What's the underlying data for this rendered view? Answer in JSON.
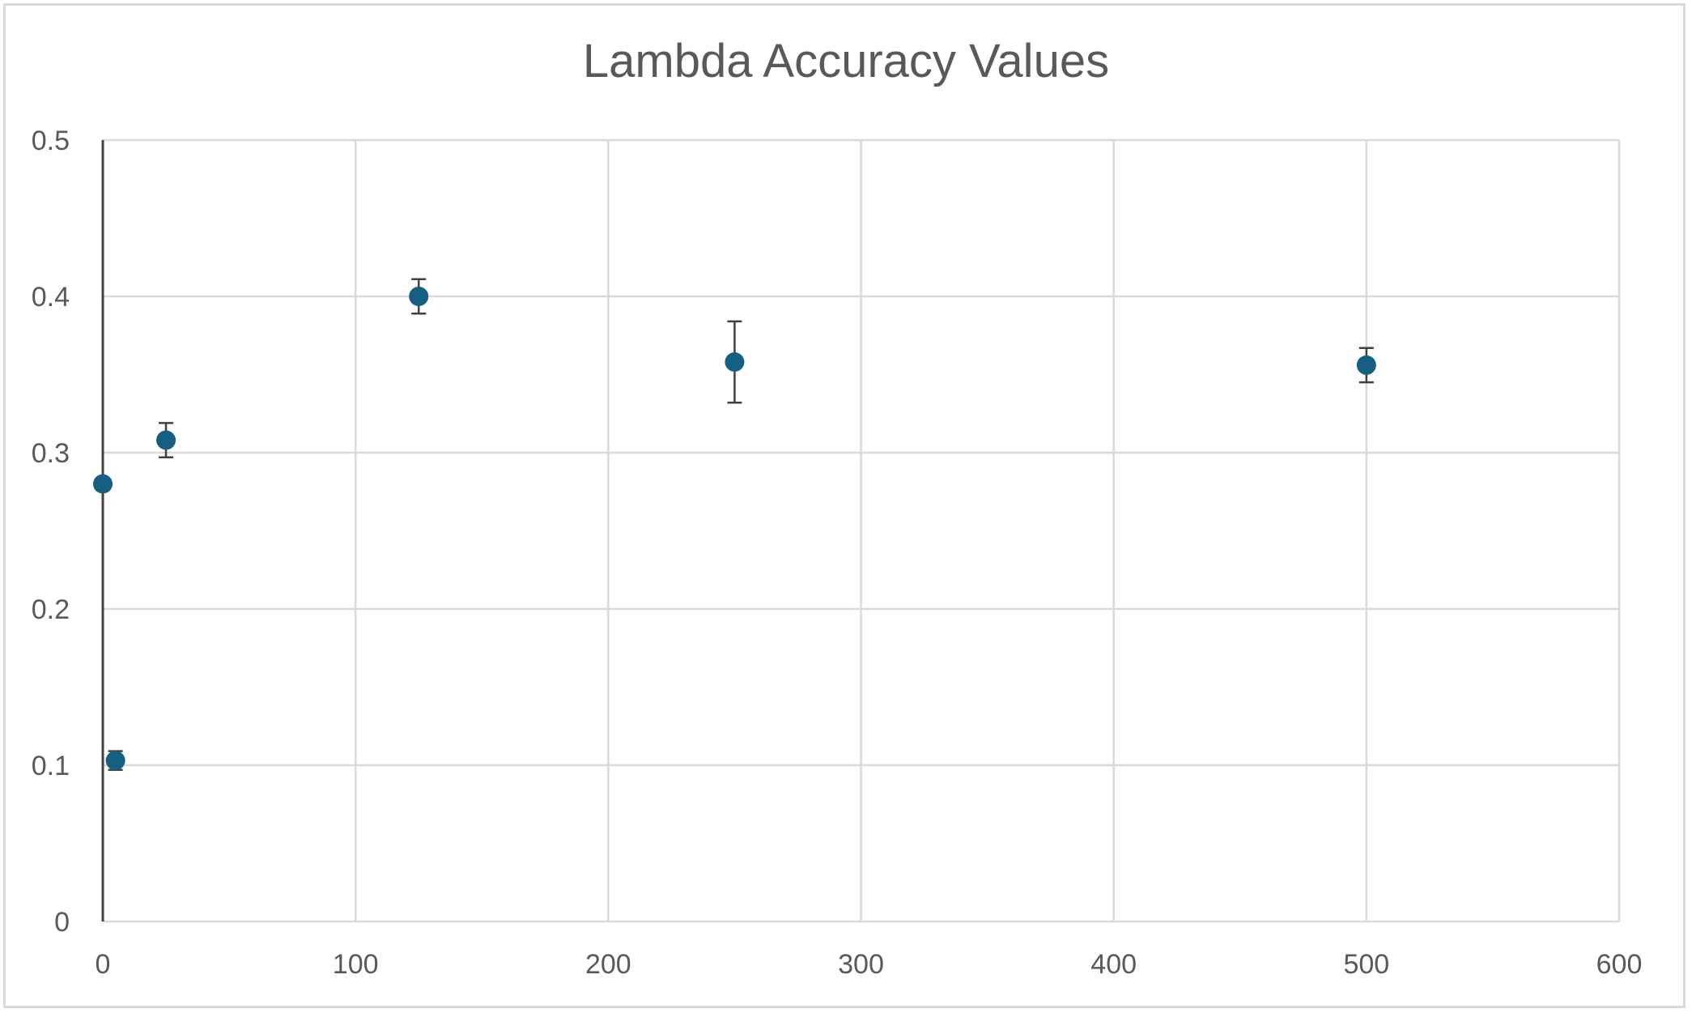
{
  "chart_data": {
    "type": "scatter",
    "title": "Lambda Accuracy Values",
    "xlabel": "",
    "ylabel": "",
    "xlim": [
      0,
      600
    ],
    "ylim": [
      0,
      0.5
    ],
    "x_ticks": [
      0,
      100,
      200,
      300,
      400,
      500,
      600
    ],
    "y_ticks": [
      0,
      0.1,
      0.2,
      0.3,
      0.4,
      0.5
    ],
    "x_tick_labels": [
      "0",
      "100",
      "200",
      "300",
      "400",
      "500",
      "600"
    ],
    "y_tick_labels": [
      "0",
      "0.1",
      "0.2",
      "0.3",
      "0.4",
      "0.5"
    ],
    "grid": true,
    "legend": "none",
    "series": [
      {
        "x": [
          0,
          5,
          25,
          125,
          250,
          500
        ],
        "y": [
          0.28,
          0.103,
          0.308,
          0.4,
          0.358,
          0.356
        ],
        "error": [
          0.0,
          0.006,
          0.011,
          0.011,
          0.026,
          0.011
        ]
      }
    ],
    "colors": {
      "marker": "#145f82",
      "grid": "#d9d9d9",
      "axis": "#404040",
      "text": "#595959",
      "error_bar": "#404040"
    }
  }
}
